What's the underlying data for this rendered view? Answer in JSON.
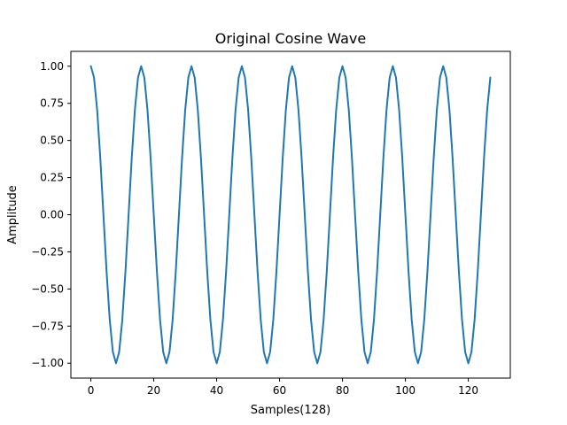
{
  "chart_data": {
    "type": "line",
    "title": "Original Cosine Wave",
    "xlabel": "Samples(128)",
    "ylabel": "Amplitude",
    "xlim": [
      -6.35,
      133.35
    ],
    "ylim": [
      -1.1,
      1.1
    ],
    "x_ticks": [
      0,
      20,
      40,
      60,
      80,
      100,
      120
    ],
    "x_tick_labels": [
      "0",
      "20",
      "40",
      "60",
      "80",
      "100",
      "120"
    ],
    "y_ticks": [
      1.0,
      0.75,
      0.5,
      0.25,
      0.0,
      -0.25,
      -0.5,
      -0.75,
      -1.0
    ],
    "y_tick_labels": [
      "1.00",
      "0.75",
      "0.50",
      "0.25",
      "0.00",
      "−0.25",
      "−0.50",
      "−0.75",
      "−1.00"
    ],
    "grid": false,
    "series": [
      {
        "color": "#1f77b4",
        "x": [
          0,
          1,
          2,
          3,
          4,
          5,
          6,
          7,
          8,
          9,
          10,
          11,
          12,
          13,
          14,
          15,
          16,
          17,
          18,
          19,
          20,
          21,
          22,
          23,
          24,
          25,
          26,
          27,
          28,
          29,
          30,
          31,
          32,
          33,
          34,
          35,
          36,
          37,
          38,
          39,
          40,
          41,
          42,
          43,
          44,
          45,
          46,
          47,
          48,
          49,
          50,
          51,
          52,
          53,
          54,
          55,
          56,
          57,
          58,
          59,
          60,
          61,
          62,
          63,
          64,
          65,
          66,
          67,
          68,
          69,
          70,
          71,
          72,
          73,
          74,
          75,
          76,
          77,
          78,
          79,
          80,
          81,
          82,
          83,
          84,
          85,
          86,
          87,
          88,
          89,
          90,
          91,
          92,
          93,
          94,
          95,
          96,
          97,
          98,
          99,
          100,
          101,
          102,
          103,
          104,
          105,
          106,
          107,
          108,
          109,
          110,
          111,
          112,
          113,
          114,
          115,
          116,
          117,
          118,
          119,
          120,
          121,
          122,
          123,
          124,
          125,
          126,
          127
        ],
        "y": [
          1.0,
          0.924,
          0.707,
          0.383,
          0.0,
          -0.383,
          -0.707,
          -0.924,
          -1.0,
          -0.924,
          -0.707,
          -0.383,
          0.0,
          0.383,
          0.707,
          0.924,
          1.0,
          0.924,
          0.707,
          0.383,
          0.0,
          -0.383,
          -0.707,
          -0.924,
          -1.0,
          -0.924,
          -0.707,
          -0.383,
          0.0,
          0.383,
          0.707,
          0.924,
          1.0,
          0.924,
          0.707,
          0.383,
          0.0,
          -0.383,
          -0.707,
          -0.924,
          -1.0,
          -0.924,
          -0.707,
          -0.383,
          0.0,
          0.383,
          0.707,
          0.924,
          1.0,
          0.924,
          0.707,
          0.383,
          0.0,
          -0.383,
          -0.707,
          -0.924,
          -1.0,
          -0.924,
          -0.707,
          -0.383,
          0.0,
          0.383,
          0.707,
          0.924,
          1.0,
          0.924,
          0.707,
          0.383,
          0.0,
          -0.383,
          -0.707,
          -0.924,
          -1.0,
          -0.924,
          -0.707,
          -0.383,
          0.0,
          0.383,
          0.707,
          0.924,
          1.0,
          0.924,
          0.707,
          0.383,
          0.0,
          -0.383,
          -0.707,
          -0.924,
          -1.0,
          -0.924,
          -0.707,
          -0.383,
          0.0,
          0.383,
          0.707,
          0.924,
          1.0,
          0.924,
          0.707,
          0.383,
          0.0,
          -0.383,
          -0.707,
          -0.924,
          -1.0,
          -0.924,
          -0.707,
          -0.383,
          0.0,
          0.383,
          0.707,
          0.924,
          1.0,
          0.924,
          0.707,
          0.383,
          0.0,
          -0.383,
          -0.707,
          -0.924,
          -1.0,
          -0.924,
          -0.707,
          -0.383,
          0.0,
          0.383,
          0.707,
          0.924
        ]
      }
    ]
  }
}
